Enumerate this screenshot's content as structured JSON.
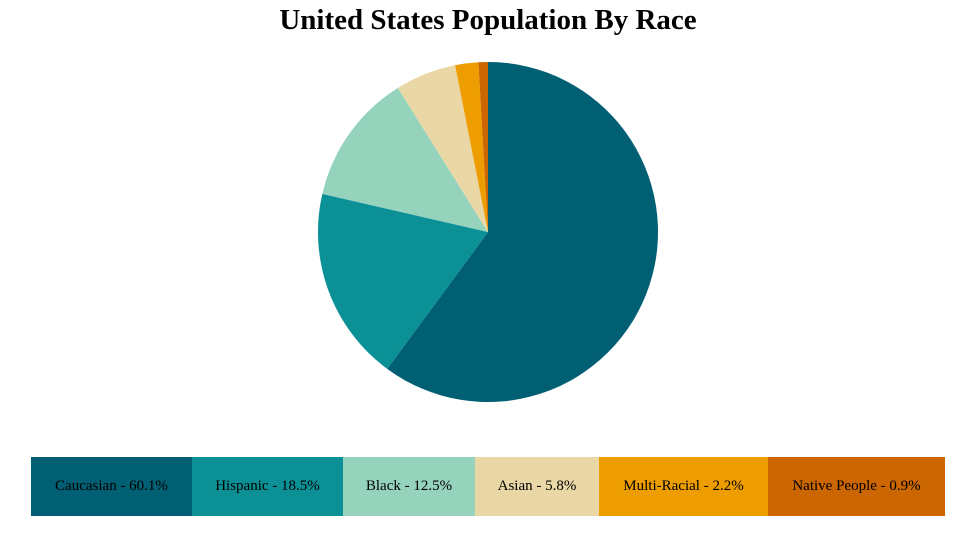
{
  "chart_data": {
    "type": "pie",
    "title": "United States Population By Race",
    "slices": [
      {
        "label": "Caucasian",
        "value": 60.1,
        "color": "#015f73"
      },
      {
        "label": "Hispanic",
        "value": 18.5,
        "color": "#0a9095"
      },
      {
        "label": "Black",
        "value": 12.5,
        "color": "#95d3bd"
      },
      {
        "label": "Asian",
        "value": 5.8,
        "color": "#e9d7a6"
      },
      {
        "label": "Multi-Racial",
        "value": 2.2,
        "color": "#ee9d00"
      },
      {
        "label": "Native People",
        "value": 0.9,
        "color": "#cb6601"
      }
    ],
    "legend": {
      "placement": "bottom",
      "items": [
        "Caucasian - 60.1%",
        "Hispanic - 18.5%",
        "Black - 12.5%",
        "Asian - 5.8%",
        "Multi-Racial - 2.2%",
        "Native People - 0.9%"
      ]
    }
  }
}
